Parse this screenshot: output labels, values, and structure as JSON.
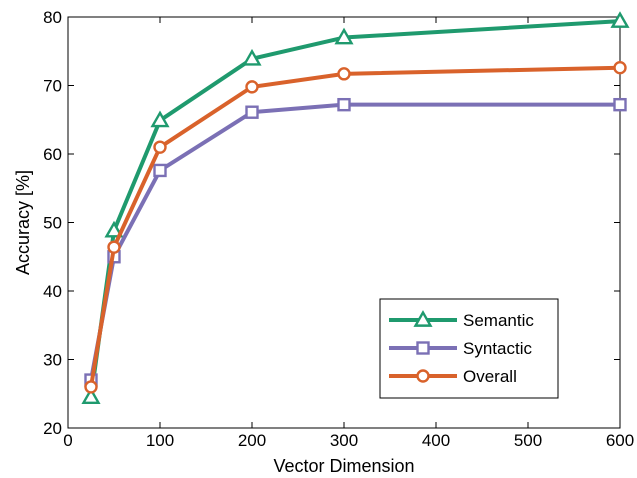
{
  "chart_data": {
    "type": "line",
    "title": "",
    "xlabel": "Vector Dimension",
    "ylabel": "Accuracy [%]",
    "xlim": [
      0,
      600
    ],
    "ylim": [
      20,
      80
    ],
    "xticks": [
      0,
      100,
      200,
      300,
      400,
      500,
      600
    ],
    "yticks": [
      20,
      30,
      40,
      50,
      60,
      70,
      80
    ],
    "xtick_labels": [
      "0",
      "100",
      "200",
      "300",
      "400",
      "500",
      "600"
    ],
    "ytick_labels": [
      "20",
      "30",
      "40",
      "50",
      "60",
      "70",
      "80"
    ],
    "grid": false,
    "legend_position": "bottom-right",
    "x": [
      25,
      50,
      100,
      200,
      300,
      600
    ],
    "series": [
      {
        "name": "Semantic",
        "values": [
          24.5,
          48.8,
          64.9,
          73.9,
          77.0,
          79.4
        ],
        "color": "#1f9a6e",
        "marker": "triangle"
      },
      {
        "name": "Syntactic",
        "values": [
          27.0,
          45.0,
          57.6,
          66.1,
          67.2,
          67.2
        ],
        "color": "#7b70b5",
        "marker": "square"
      },
      {
        "name": "Overall",
        "values": [
          26.0,
          46.4,
          61.0,
          69.8,
          71.7,
          72.6
        ],
        "color": "#d9622b",
        "marker": "circle"
      }
    ]
  }
}
